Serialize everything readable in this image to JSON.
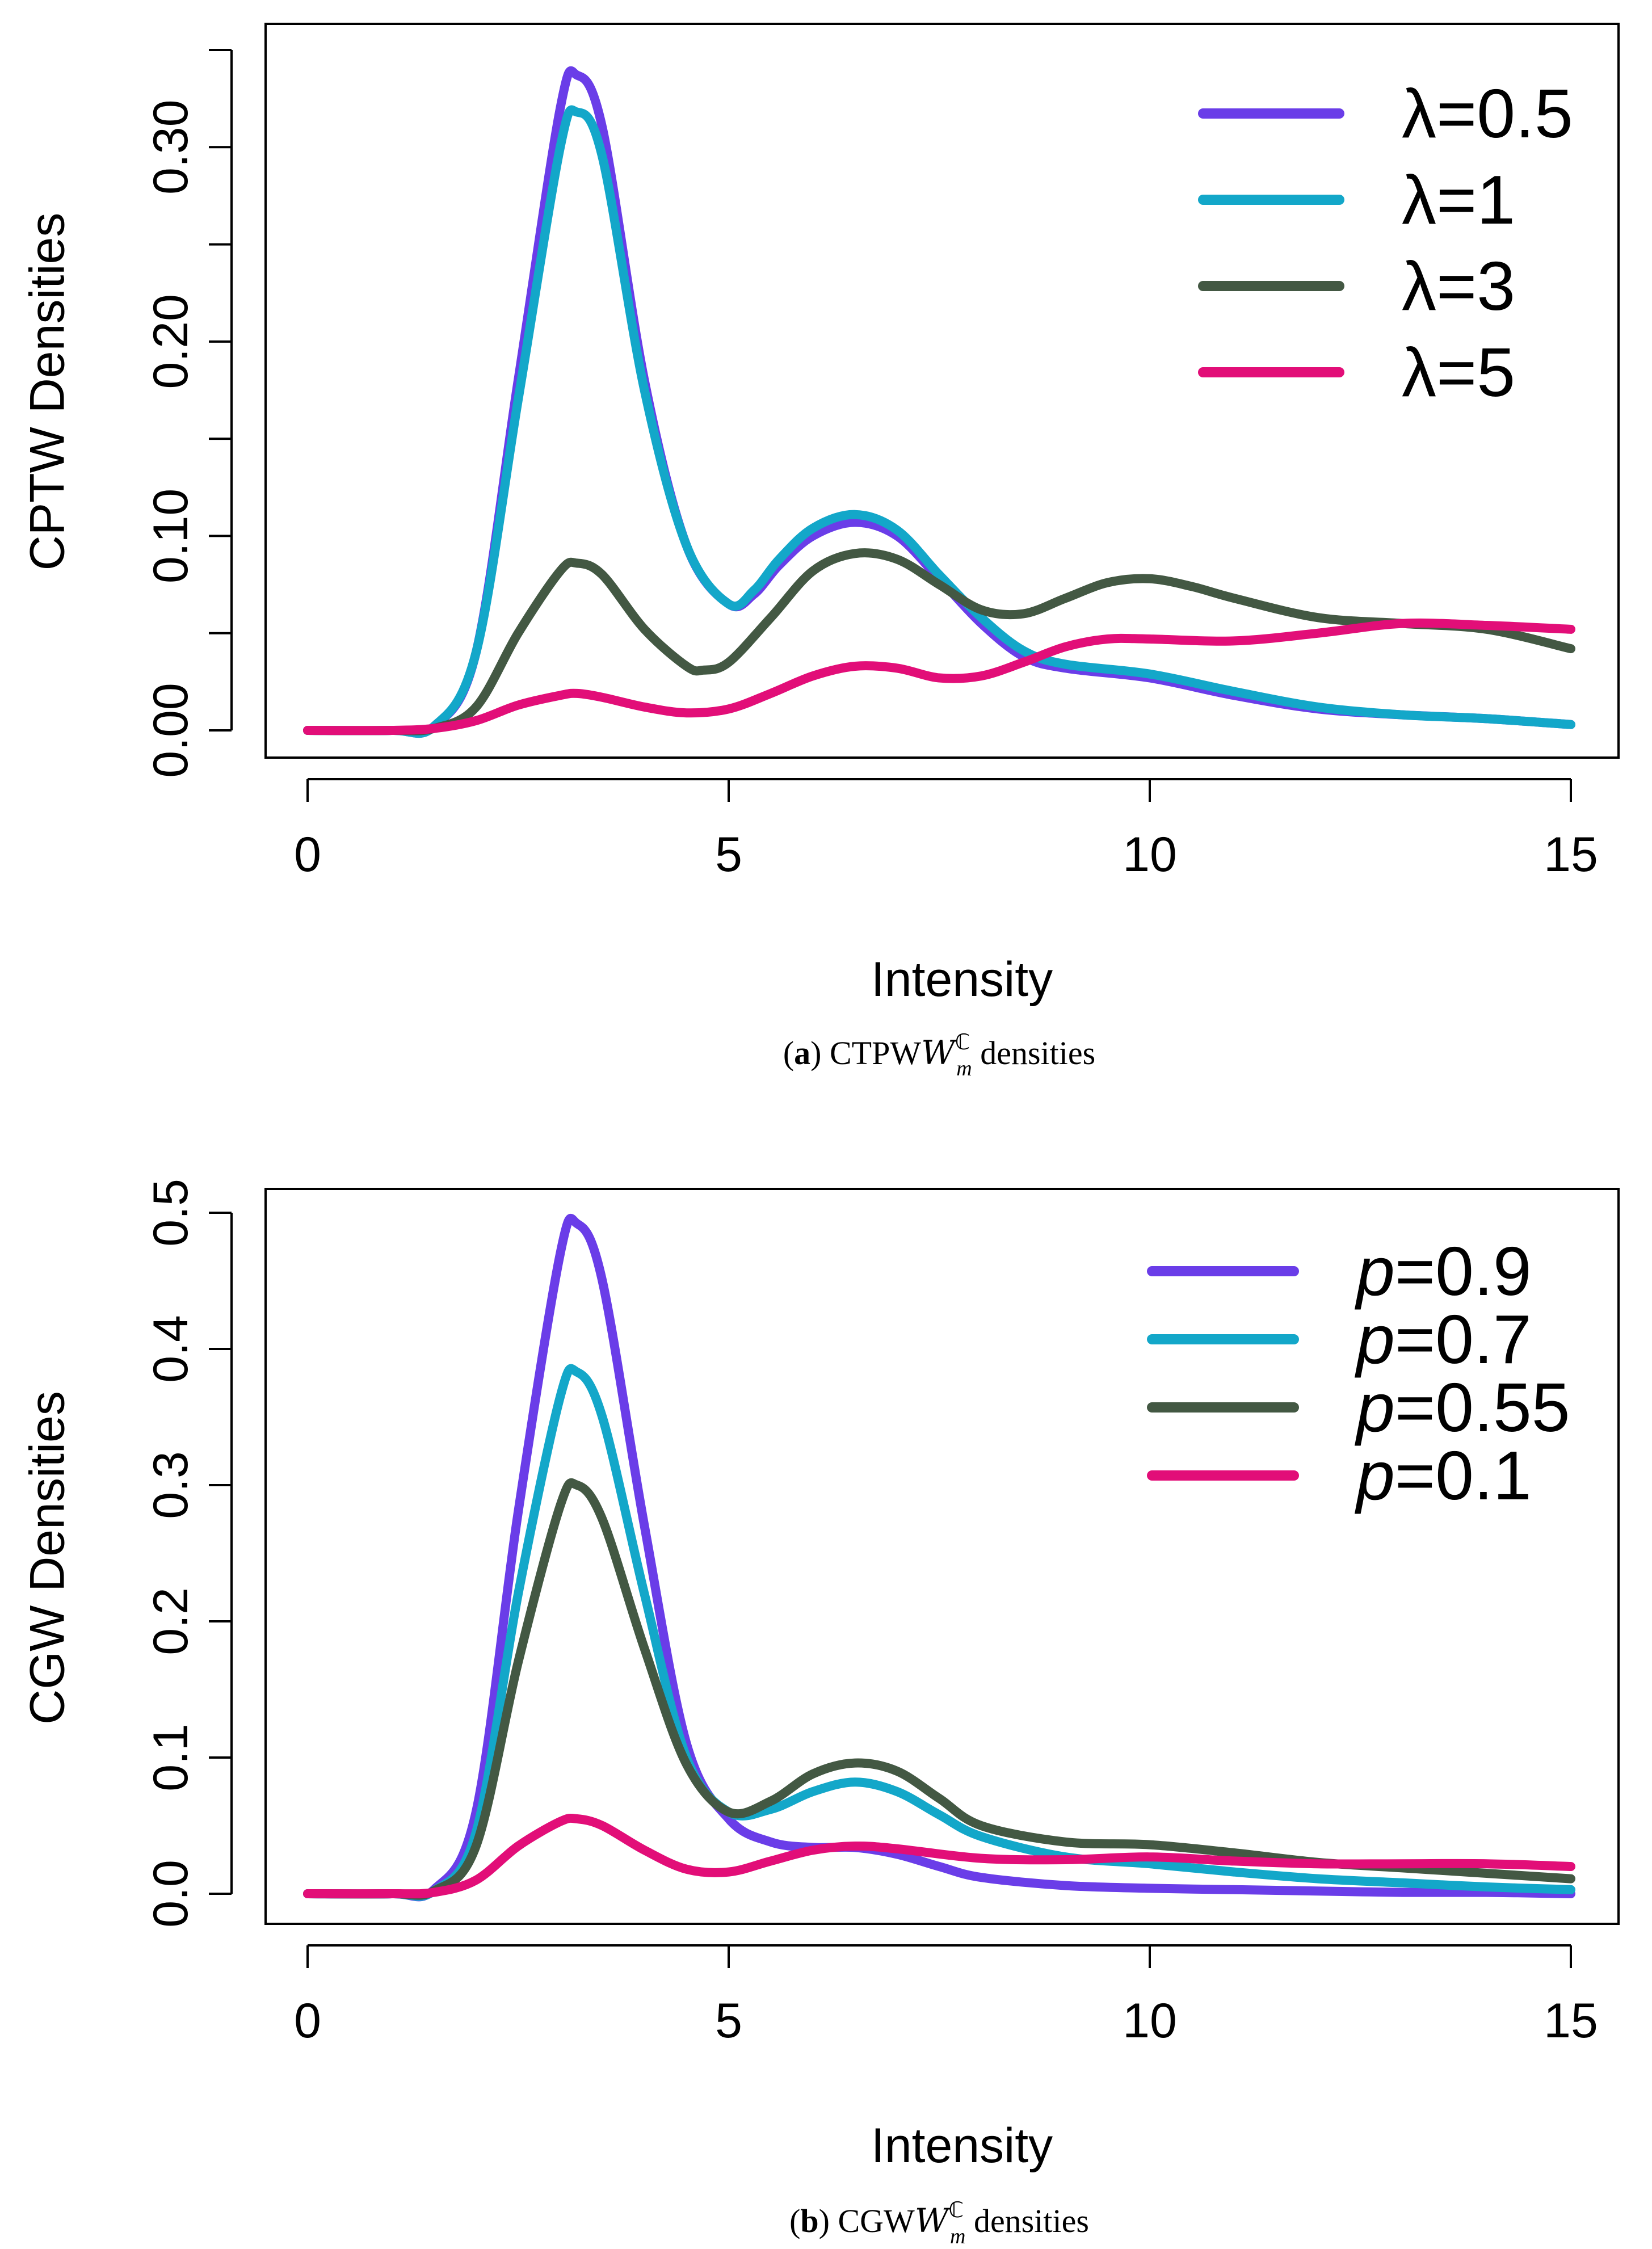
{
  "chart_data": [
    {
      "type": "line",
      "panel": "a",
      "title": "",
      "xlabel": "Intensity",
      "ylabel": "CPTW Densities",
      "xlim": [
        0,
        15
      ],
      "ylim": [
        0,
        0.35
      ],
      "xticks": [
        0,
        5,
        10,
        15
      ],
      "xtick_labels": [
        "0",
        "5",
        "10",
        "15"
      ],
      "yticks": [
        0,
        0.05,
        0.1,
        0.15,
        0.2,
        0.25,
        0.3,
        0.35
      ],
      "ytick_labels": [
        "0.00",
        "",
        "0.10",
        "",
        "0.20",
        "",
        "0.30",
        ""
      ],
      "legend_position": "top-right",
      "caption": {
        "label": "(a)",
        "text": "CTPW",
        "sup": "ℂ",
        "sub": "m",
        "suffix": " densities"
      },
      "series": [
        {
          "name": "λ=0.5",
          "color": "#6a3de8",
          "x": [
            0,
            1,
            1.5,
            2,
            2.5,
            3,
            3.2,
            3.5,
            4,
            4.5,
            5,
            5.3,
            5.6,
            6,
            6.5,
            7,
            7.5,
            8,
            8.5,
            9,
            10,
            11,
            12,
            13,
            14,
            15
          ],
          "y": [
            0,
            0,
            0.002,
            0.04,
            0.18,
            0.32,
            0.337,
            0.31,
            0.18,
            0.095,
            0.065,
            0.07,
            0.085,
            0.1,
            0.107,
            0.1,
            0.078,
            0.055,
            0.038,
            0.032,
            0.027,
            0.018,
            0.011,
            0.008,
            0.006,
            0.003
          ]
        },
        {
          "name": "λ=1",
          "color": "#13a7c9",
          "x": [
            0,
            1,
            1.5,
            2,
            2.5,
            3,
            3.2,
            3.5,
            4,
            4.5,
            5,
            5.3,
            5.6,
            6,
            6.5,
            7,
            7.5,
            8,
            8.5,
            9,
            10,
            11,
            12,
            13,
            14,
            15
          ],
          "y": [
            0,
            0,
            0.002,
            0.04,
            0.17,
            0.3,
            0.318,
            0.295,
            0.175,
            0.095,
            0.065,
            0.072,
            0.088,
            0.104,
            0.111,
            0.103,
            0.08,
            0.058,
            0.041,
            0.034,
            0.029,
            0.02,
            0.012,
            0.008,
            0.006,
            0.003
          ]
        },
        {
          "name": "λ=3",
          "color": "#435843",
          "x": [
            0,
            1,
            1.5,
            2,
            2.5,
            3,
            3.2,
            3.5,
            4,
            4.5,
            4.7,
            5,
            5.5,
            6,
            6.5,
            7,
            7.5,
            8,
            8.5,
            9,
            9.5,
            10,
            10.5,
            11,
            12,
            13,
            14,
            15
          ],
          "y": [
            0,
            0,
            0.001,
            0.012,
            0.05,
            0.082,
            0.086,
            0.08,
            0.052,
            0.033,
            0.031,
            0.035,
            0.058,
            0.082,
            0.091,
            0.088,
            0.075,
            0.062,
            0.06,
            0.068,
            0.076,
            0.078,
            0.074,
            0.068,
            0.058,
            0.055,
            0.052,
            0.042
          ]
        },
        {
          "name": "λ=5",
          "color": "#e20e78",
          "x": [
            0,
            1,
            1.5,
            2,
            2.5,
            3,
            3.2,
            3.5,
            4,
            4.5,
            5,
            5.5,
            6,
            6.5,
            7,
            7.5,
            8,
            8.5,
            9,
            9.5,
            10,
            11,
            12,
            13,
            14,
            15
          ],
          "y": [
            0,
            0,
            0.001,
            0.005,
            0.013,
            0.018,
            0.019,
            0.017,
            0.012,
            0.009,
            0.011,
            0.019,
            0.028,
            0.033,
            0.032,
            0.027,
            0.028,
            0.035,
            0.043,
            0.047,
            0.047,
            0.046,
            0.05,
            0.055,
            0.054,
            0.052
          ]
        }
      ]
    },
    {
      "type": "line",
      "panel": "b",
      "title": "",
      "xlabel": "Intensity",
      "ylabel": "CGW Densities",
      "xlim": [
        0,
        15
      ],
      "ylim": [
        0,
        0.5
      ],
      "xticks": [
        0,
        5,
        10,
        15
      ],
      "xtick_labels": [
        "0",
        "5",
        "10",
        "15"
      ],
      "yticks": [
        0,
        0.1,
        0.2,
        0.3,
        0.4,
        0.5
      ],
      "ytick_labels": [
        "0.0",
        "0.1",
        "0.2",
        "0.3",
        "0.4",
        "0.5"
      ],
      "legend_position": "top-right",
      "caption": {
        "label": "(b)",
        "text": "CGW",
        "sup": "ℂ",
        "sub": "m",
        "suffix": " densities"
      },
      "series": [
        {
          "name": "p=0.9",
          "label_var": "p",
          "label_val": "=0.9",
          "color": "#6a3de8",
          "x": [
            0,
            1,
            1.5,
            2,
            2.5,
            3,
            3.2,
            3.5,
            4,
            4.5,
            5,
            5.5,
            6,
            6.5,
            7,
            7.5,
            8,
            9,
            10,
            11,
            12,
            13,
            14,
            15
          ],
          "y": [
            0,
            0,
            0.003,
            0.06,
            0.28,
            0.47,
            0.492,
            0.45,
            0.27,
            0.11,
            0.055,
            0.038,
            0.034,
            0.034,
            0.029,
            0.02,
            0.012,
            0.006,
            0.004,
            0.003,
            0.002,
            0.001,
            0.001,
            0
          ]
        },
        {
          "name": "p=0.7",
          "label_var": "p",
          "label_val": "=0.7",
          "color": "#13a7c9",
          "x": [
            0,
            1,
            1.5,
            2,
            2.5,
            3,
            3.2,
            3.5,
            4,
            4.5,
            5,
            5.5,
            6,
            6.5,
            7,
            7.5,
            8,
            9,
            10,
            11,
            12,
            13,
            14,
            15
          ],
          "y": [
            0,
            0,
            0.002,
            0.045,
            0.22,
            0.365,
            0.383,
            0.35,
            0.22,
            0.1,
            0.06,
            0.062,
            0.075,
            0.082,
            0.075,
            0.058,
            0.042,
            0.027,
            0.022,
            0.016,
            0.011,
            0.008,
            0.005,
            0.003
          ]
        },
        {
          "name": "p=0.55",
          "label_var": "p",
          "label_val": "=0.55",
          "color": "#435843",
          "x": [
            0,
            1,
            1.5,
            2,
            2.5,
            3,
            3.2,
            3.5,
            4,
            4.5,
            5,
            5.5,
            6,
            6.5,
            7,
            7.5,
            8,
            9,
            10,
            11,
            12,
            13,
            14,
            15
          ],
          "y": [
            0,
            0,
            0.002,
            0.035,
            0.17,
            0.285,
            0.3,
            0.275,
            0.18,
            0.095,
            0.06,
            0.068,
            0.088,
            0.096,
            0.09,
            0.07,
            0.05,
            0.038,
            0.036,
            0.03,
            0.023,
            0.019,
            0.015,
            0.011
          ]
        },
        {
          "name": "p=0.1",
          "label_var": "p",
          "label_val": "=0.1",
          "color": "#e20e78",
          "x": [
            0,
            1,
            1.5,
            2,
            2.5,
            3,
            3.2,
            3.5,
            4,
            4.5,
            5,
            5.5,
            6,
            6.5,
            7,
            8,
            9,
            10,
            11,
            12,
            13,
            14,
            15
          ],
          "y": [
            0,
            0,
            0.001,
            0.01,
            0.035,
            0.053,
            0.055,
            0.05,
            0.032,
            0.018,
            0.016,
            0.024,
            0.032,
            0.035,
            0.033,
            0.026,
            0.025,
            0.027,
            0.024,
            0.022,
            0.022,
            0.022,
            0.02
          ]
        }
      ]
    }
  ]
}
